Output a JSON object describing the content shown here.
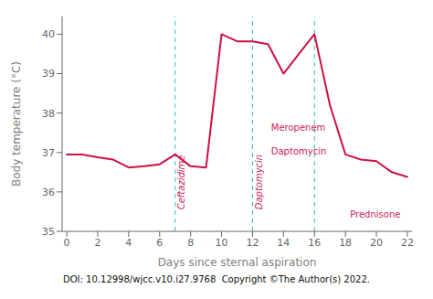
{
  "chart_data": {
    "type": "line",
    "xlabel": "Days since sternal aspiration",
    "ylabel": "Body temperature (°C)",
    "x": [
      0,
      1,
      2,
      3,
      4,
      5,
      6,
      7,
      8,
      9,
      10,
      11,
      12,
      13,
      14,
      15,
      16,
      17,
      18,
      19,
      20,
      21,
      22
    ],
    "values": [
      36.95,
      36.95,
      36.88,
      36.82,
      36.62,
      36.65,
      36.7,
      36.95,
      36.65,
      36.62,
      40.0,
      39.82,
      39.82,
      39.75,
      39.0,
      39.5,
      40.0,
      38.2,
      36.95,
      36.82,
      36.78,
      36.5,
      36.38
    ],
    "color": "#CC1144",
    "xlim": [
      -0.3,
      22.3
    ],
    "ylim": [
      35.0,
      40.45
    ],
    "xticks": [
      0,
      2,
      4,
      6,
      8,
      10,
      12,
      14,
      16,
      18,
      20,
      22
    ],
    "yticks": [
      35,
      36,
      37,
      38,
      39,
      40
    ],
    "grid": false,
    "reference_lines": [
      {
        "x": 7.0,
        "color": "#33BBBB",
        "line_style": "dashed"
      },
      {
        "x": 12.0,
        "color": "#33BBBB",
        "line_style": "dashed"
      },
      {
        "x": 16.0,
        "color": "#33BBBB",
        "line_style": "dashed"
      }
    ],
    "annotations": [
      {
        "text": "Ceftazidime",
        "x": 7.2,
        "y": 35.55,
        "color": "#CC2255"
      },
      {
        "text": "Daptomycin",
        "x": 12.2,
        "y": 35.55,
        "color": "#CC2255"
      },
      {
        "text": "Meropenem",
        "x": 13.2,
        "y": 37.55,
        "color": "#CC2255"
      },
      {
        "text": "Daptomycin",
        "x": 13.2,
        "y": 36.95,
        "color": "#CC2255"
      },
      {
        "text": "Prednisone",
        "x": 18.3,
        "y": 35.35,
        "color": "#CC2255"
      },
      {
        "text": "DOI: 10.12998/wjcc.v10.i27.9768  Copyright ©The Author(s) 2022.",
        "color": "#111111"
      }
    ]
  }
}
